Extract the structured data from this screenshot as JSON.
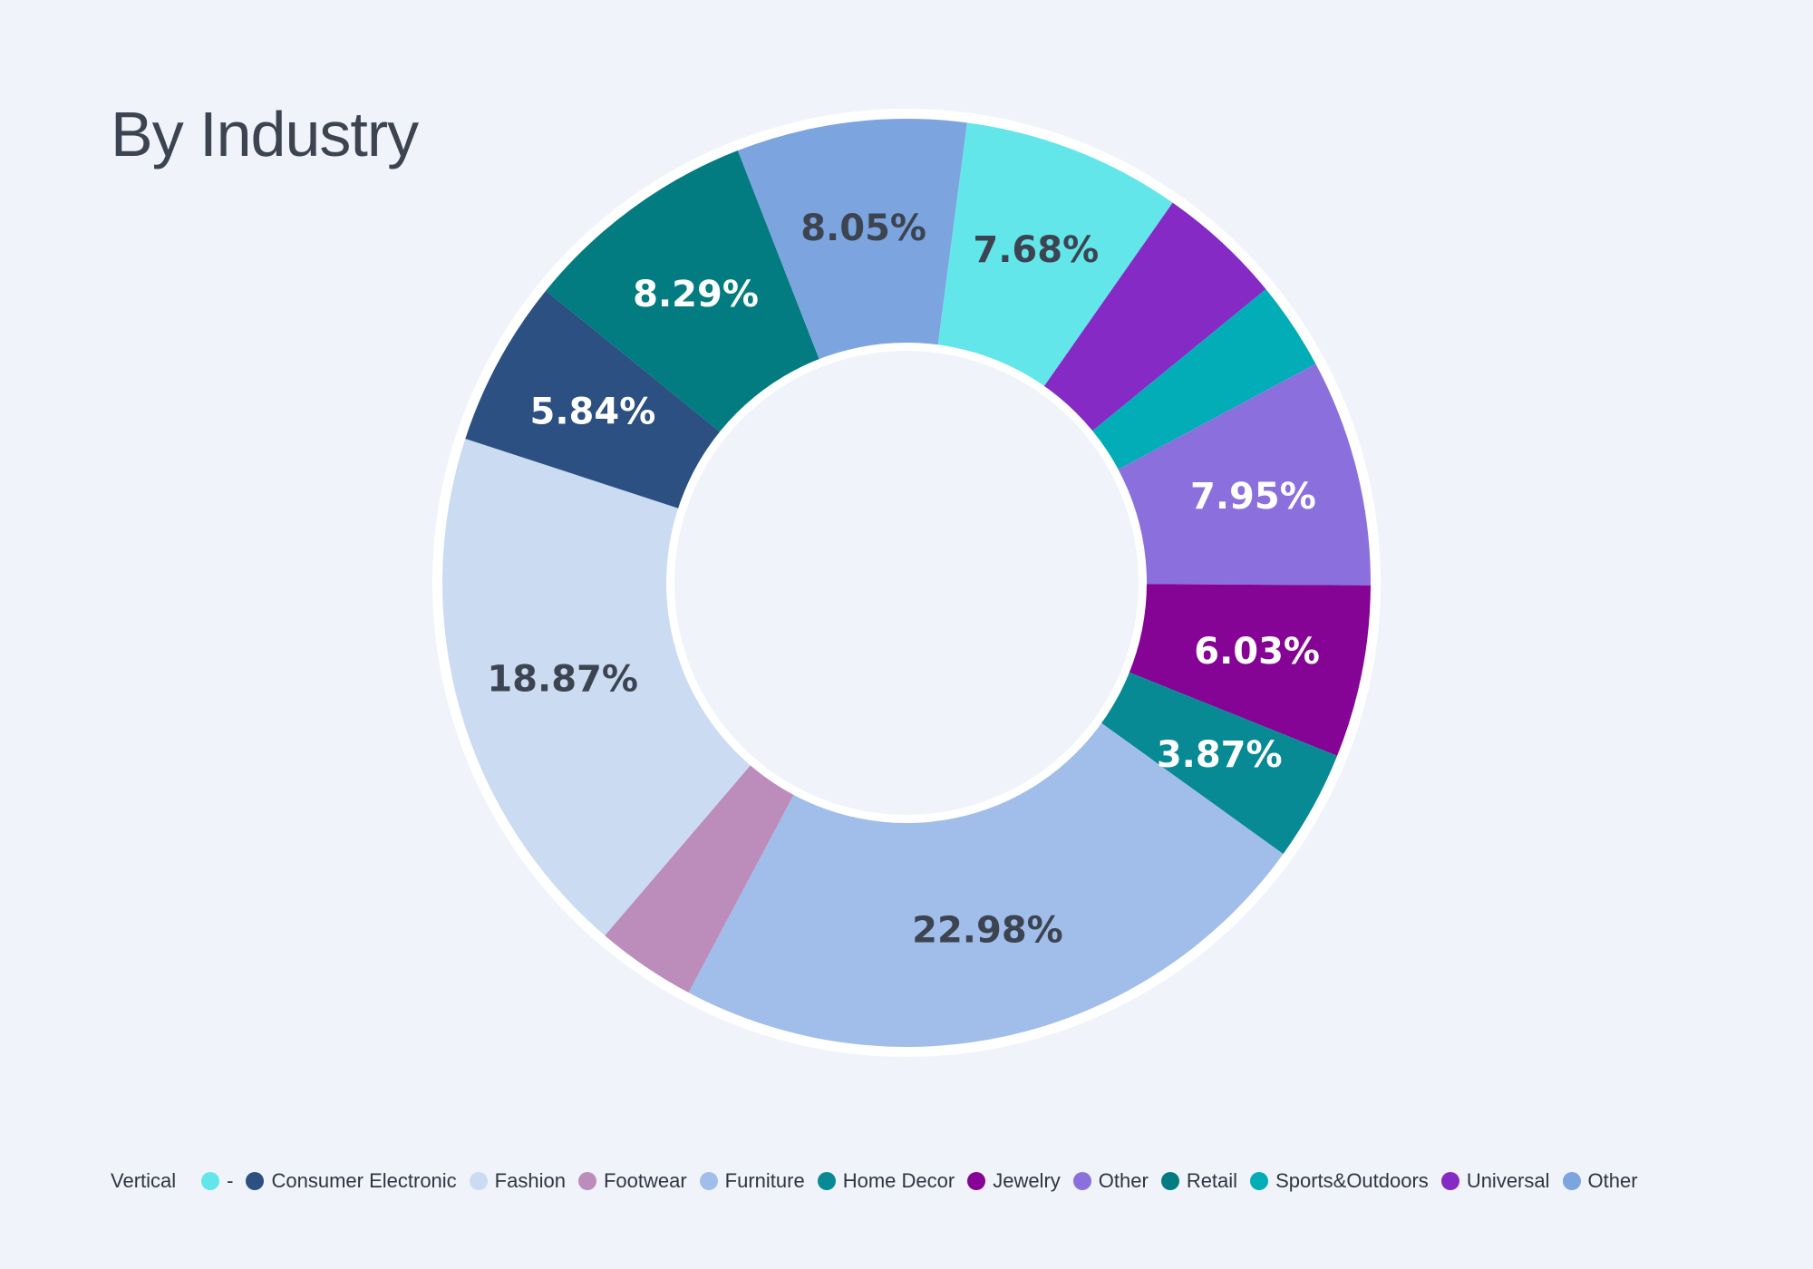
{
  "chart_data": {
    "type": "pie",
    "variant": "donut",
    "title": "By Industry",
    "legend_title": "Vertical",
    "legend_position": "bottom",
    "slices": [
      {
        "label": "-",
        "value": 7.68,
        "value_label": "7.68%",
        "color": "#63e6ea",
        "label_color": "#3d4451"
      },
      {
        "label": "Universal",
        "value": 4.4,
        "value_label": "",
        "color": "#852ac4",
        "label_color": "#ffffff"
      },
      {
        "label": "Sports&Outdoors",
        "value": 3.1,
        "value_label": "",
        "color": "#02adb8",
        "label_color": "#ffffff"
      },
      {
        "label": "Other",
        "value": 7.95,
        "value_label": "7.95%",
        "color": "#8b70dd",
        "label_color": "#ffffff"
      },
      {
        "label": "Jewelry",
        "value": 6.03,
        "value_label": "6.03%",
        "color": "#850395",
        "label_color": "#ffffff"
      },
      {
        "label": "Home Decor",
        "value": 3.87,
        "value_label": "3.87%",
        "color": "#078a94",
        "label_color": "#ffffff"
      },
      {
        "label": "Furniture",
        "value": 22.98,
        "value_label": "22.98%",
        "color": "#a0bee9",
        "label_color": "#3d4451"
      },
      {
        "label": "Footwear",
        "value": 3.5,
        "value_label": "",
        "color": "#bc8cbb",
        "label_color": "#ffffff"
      },
      {
        "label": "Fashion",
        "value": 18.87,
        "value_label": "18.87%",
        "color": "#cbdbf2",
        "label_color": "#3d4451"
      },
      {
        "label": "Consumer Electronic",
        "value": 5.84,
        "value_label": "5.84%",
        "color": "#2b5081",
        "label_color": "#ffffff"
      },
      {
        "label": "Retail",
        "value": 8.29,
        "value_label": "8.29%",
        "color": "#027c80",
        "label_color": "#ffffff"
      },
      {
        "label": "Other",
        "value": 8.05,
        "value_label": "8.05%",
        "color": "#7ca4df",
        "label_color": "#3d4451"
      }
    ],
    "legend": [
      {
        "label": "-",
        "color": "#63e6ea"
      },
      {
        "label": "Consumer Electronic",
        "color": "#2b5081"
      },
      {
        "label": "Fashion",
        "color": "#cbdbf2"
      },
      {
        "label": "Footwear",
        "color": "#bc8cbb"
      },
      {
        "label": "Furniture",
        "color": "#a0bee9"
      },
      {
        "label": "Home Decor",
        "color": "#078a94"
      },
      {
        "label": "Jewelry",
        "color": "#850395"
      },
      {
        "label": "Other",
        "color": "#8b70dd"
      },
      {
        "label": "Retail",
        "color": "#027c80"
      },
      {
        "label": "Sports&Outdoors",
        "color": "#02adb8"
      },
      {
        "label": "Universal",
        "color": "#852ac4"
      },
      {
        "label": "Other",
        "color": "#7ca4df"
      }
    ]
  }
}
